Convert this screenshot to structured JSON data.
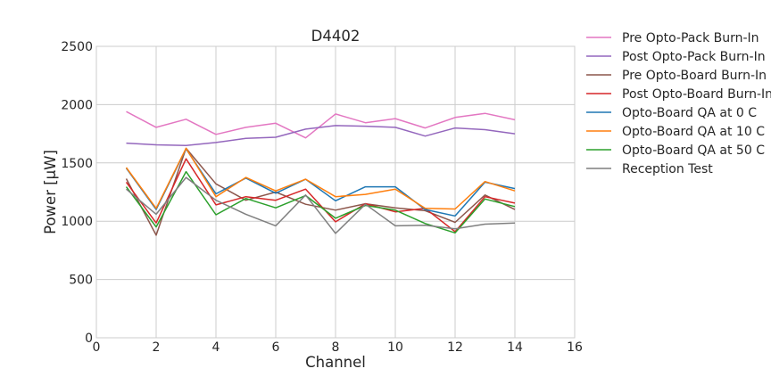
{
  "chart_data": {
    "type": "line",
    "title": "D4402",
    "xlabel": "Channel",
    "ylabel": "Power [μW]",
    "xlim": [
      0,
      16
    ],
    "ylim": [
      0,
      2500
    ],
    "xticks": [
      0,
      2,
      4,
      6,
      8,
      10,
      12,
      14,
      16
    ],
    "yticks": [
      0,
      500,
      1000,
      1500,
      2000,
      2500
    ],
    "grid": true,
    "legend_position": "outside-right",
    "x": [
      1,
      2,
      3,
      4,
      5,
      6,
      7,
      8,
      9,
      10,
      11,
      12,
      13,
      14
    ],
    "series": [
      {
        "name": "Pre Opto-Pack Burn-In",
        "color": "#e377c2",
        "values": [
          1940,
          1805,
          1875,
          1745,
          1805,
          1840,
          1715,
          1920,
          1845,
          1880,
          1800,
          1890,
          1925,
          1870
        ]
      },
      {
        "name": "Post Opto-Pack Burn-In",
        "color": "#9467bd",
        "values": [
          1670,
          1655,
          1650,
          1675,
          1710,
          1720,
          1790,
          1820,
          1815,
          1805,
          1730,
          1800,
          1785,
          1750
        ]
      },
      {
        "name": "Pre Opto-Board Burn-In",
        "color": "#8c564b",
        "values": [
          1365,
          880,
          1625,
          1320,
          1180,
          1250,
          1145,
          1095,
          1150,
          1115,
          1090,
          990,
          1225,
          1100
        ]
      },
      {
        "name": "Post Opto-Board Burn-In",
        "color": "#d62728",
        "values": [
          1335,
          985,
          1535,
          1140,
          1210,
          1180,
          1275,
          995,
          1150,
          1080,
          1110,
          910,
          1210,
          1155
        ]
      },
      {
        "name": "Opto-Board QA at 0 C",
        "color": "#1f77b4",
        "values": [
          1455,
          1100,
          1620,
          1235,
          1370,
          1240,
          1360,
          1175,
          1295,
          1295,
          1100,
          1045,
          1335,
          1280
        ]
      },
      {
        "name": "Opto-Board QA at 10 C",
        "color": "#ff7f0e",
        "values": [
          1460,
          1110,
          1625,
          1210,
          1375,
          1260,
          1360,
          1210,
          1230,
          1275,
          1110,
          1105,
          1340,
          1260
        ]
      },
      {
        "name": "Opto-Board QA at 50 C",
        "color": "#2ca02c",
        "values": [
          1295,
          950,
          1425,
          1055,
          1195,
          1115,
          1220,
          1025,
          1135,
          1095,
          980,
          900,
          1190,
          1125
        ]
      },
      {
        "name": "Reception Test",
        "color": "#7f7f7f",
        "values": [
          1275,
          1060,
          1375,
          1180,
          1060,
          960,
          1225,
          895,
          1145,
          960,
          965,
          935,
          975,
          985
        ]
      }
    ]
  }
}
